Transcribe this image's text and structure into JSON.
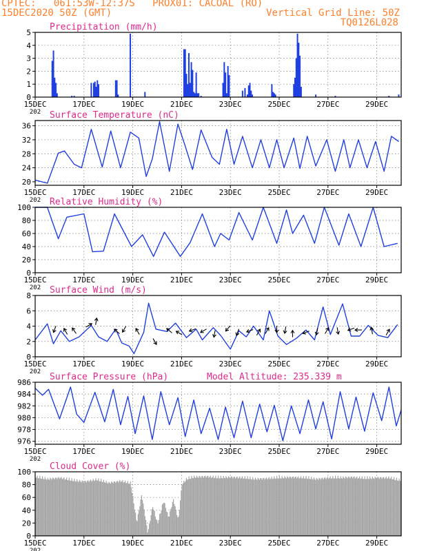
{
  "header": {
    "line1": "CPTEC:   061:53W-12:37S   PROX01: CACOAL (RO)",
    "line2": "15DEC2020 50Z (GMT)",
    "grid_note": "Vertical Grid Line: 50Z",
    "run_id": "TQ0126L028"
  },
  "colors": {
    "header": "#ff7f2a",
    "panel_title": "#e0288c",
    "line": "#1f3fe0",
    "bar": "#1f3fe0",
    "cloud": "#a8a8a8",
    "arrow": "#000000"
  },
  "x_axis": {
    "start_day": 15,
    "end_day": 30,
    "tick_days": [
      15,
      17,
      19,
      21,
      23,
      25,
      27,
      29
    ],
    "tick_labels": [
      "15DEC",
      "17DEC",
      "19DEC",
      "21DEC",
      "23DEC",
      "25DEC",
      "27DEC",
      "29DEC"
    ],
    "year_label": "202"
  },
  "chart_data": [
    {
      "type": "bar",
      "title": "Precipitation (mm/h)",
      "ylim": [
        0,
        5
      ],
      "yticks": [
        0,
        1,
        2,
        3,
        4,
        5
      ],
      "grid": true,
      "x": [
        15.7,
        15.75,
        15.8,
        15.85,
        15.9,
        16.5,
        16.6,
        17.3,
        17.4,
        17.45,
        17.5,
        17.55,
        17.6,
        18.3,
        18.35,
        18.4,
        18.9,
        19.5,
        21.1,
        21.15,
        21.2,
        21.25,
        21.3,
        21.35,
        21.4,
        21.45,
        21.5,
        21.55,
        21.6,
        21.65,
        21.7,
        21.8,
        22.7,
        22.75,
        22.8,
        22.85,
        22.9,
        22.95,
        23.5,
        23.6,
        23.7,
        23.75,
        23.8,
        23.85,
        23.9,
        24.7,
        24.75,
        24.8,
        24.85,
        25.6,
        25.65,
        25.7,
        25.75,
        25.8,
        25.85,
        25.9,
        26.5,
        27.3,
        29.5,
        29.9
      ],
      "values": [
        2.8,
        3.6,
        1.5,
        1.1,
        0.3,
        0.1,
        0.1,
        1.1,
        1.1,
        1.2,
        0.8,
        1.3,
        1.0,
        1.3,
        1.3,
        0.2,
        4.9,
        0.4,
        3.7,
        3.7,
        1.8,
        1.0,
        3.4,
        1.1,
        2.7,
        2.1,
        0.4,
        0.3,
        1.9,
        0.3,
        0.3,
        0.1,
        1.1,
        2.7,
        1.9,
        0.3,
        2.4,
        1.7,
        0.5,
        0.7,
        0.2,
        0.9,
        1.1,
        0.5,
        0.2,
        1.0,
        0.4,
        0.3,
        0.2,
        1.0,
        1.5,
        3.0,
        4.9,
        4.2,
        3.2,
        0.8,
        0.2,
        0.1,
        0.1,
        0.2
      ]
    },
    {
      "type": "line",
      "title": "Surface Temperature (nC)",
      "ylim": [
        19,
        37.5
      ],
      "yticks": [
        20,
        24,
        28,
        32,
        36
      ],
      "grid": true,
      "x": [
        15.0,
        15.5,
        15.95,
        16.2,
        16.6,
        16.9,
        17.3,
        17.75,
        18.1,
        18.5,
        18.9,
        19.25,
        19.55,
        19.8,
        20.1,
        20.5,
        20.85,
        21.15,
        21.45,
        21.8,
        22.25,
        22.55,
        22.85,
        23.15,
        23.5,
        23.9,
        24.25,
        24.6,
        24.9,
        25.2,
        25.6,
        25.85,
        26.15,
        26.5,
        26.95,
        27.3,
        27.65,
        27.9,
        28.25,
        28.6,
        28.95,
        29.3,
        29.6,
        29.9
      ],
      "values": [
        20.5,
        19.6,
        28.2,
        28.8,
        25.0,
        24.0,
        35.0,
        24.2,
        34.5,
        24.0,
        34.2,
        32.5,
        21.5,
        26.5,
        37.2,
        23.0,
        36.5,
        30.2,
        23.5,
        34.8,
        27.0,
        25.0,
        35.0,
        25.0,
        33.0,
        24.0,
        32.0,
        24.0,
        32.0,
        24.0,
        32.5,
        23.8,
        33.0,
        24.5,
        32.0,
        23.0,
        32.0,
        24.0,
        32.0,
        24.0,
        31.5,
        23.0,
        33.0,
        31.5
      ]
    },
    {
      "type": "line",
      "title": "Relative Humidity (%)",
      "ylim": [
        0,
        100
      ],
      "yticks": [
        0,
        20,
        40,
        60,
        80,
        100
      ],
      "grid": true,
      "x": [
        15.0,
        15.5,
        15.95,
        16.3,
        17.0,
        17.35,
        17.8,
        18.25,
        18.95,
        19.4,
        19.85,
        20.3,
        20.95,
        21.35,
        21.85,
        22.35,
        22.6,
        22.95,
        23.35,
        23.9,
        24.35,
        24.9,
        25.3,
        25.55,
        26.0,
        26.45,
        26.85,
        27.45,
        27.85,
        28.35,
        28.85,
        29.3,
        29.85
      ],
      "values": [
        100,
        100,
        52,
        85,
        90,
        32,
        33,
        90,
        40,
        58,
        25,
        62,
        25,
        46,
        90,
        40,
        60,
        50,
        92,
        50,
        100,
        45,
        96,
        60,
        88,
        45,
        100,
        42,
        90,
        40,
        100,
        40,
        45
      ]
    },
    {
      "type": "line",
      "title": "Surface Wind (m/s)",
      "ylim": [
        0,
        8
      ],
      "yticks": [
        0,
        2,
        4,
        6,
        8
      ],
      "grid": true,
      "x": [
        15.0,
        15.5,
        15.75,
        16.05,
        16.4,
        16.8,
        17.3,
        17.6,
        17.95,
        18.3,
        18.55,
        18.85,
        19.05,
        19.45,
        19.65,
        19.95,
        20.4,
        20.75,
        21.2,
        21.6,
        21.85,
        22.3,
        22.6,
        23.0,
        23.35,
        23.65,
        23.95,
        24.35,
        24.6,
        24.95,
        25.3,
        25.7,
        26.1,
        26.45,
        26.8,
        27.1,
        27.6,
        27.95,
        28.3,
        28.65,
        29.05,
        29.45,
        29.85
      ],
      "values": [
        2.2,
        4.3,
        1.7,
        3.4,
        2.0,
        2.6,
        4.1,
        2.6,
        2.0,
        3.6,
        1.8,
        1.4,
        0.4,
        3.2,
        7.0,
        3.6,
        3.3,
        4.4,
        2.5,
        3.6,
        2.2,
        3.8,
        2.8,
        1.0,
        3.4,
        2.6,
        4.0,
        2.2,
        6.0,
        2.7,
        1.6,
        2.4,
        3.5,
        2.2,
        6.5,
        2.9,
        6.9,
        2.7,
        2.7,
        4.1,
        2.8,
        2.5,
        4.2
      ]
    },
    {
      "type": "line",
      "title": "Surface Pressure (hPa)",
      "annotation": "Model Altitude: 235.339 m",
      "ylim": [
        975.5,
        986
      ],
      "yticks": [
        976,
        978,
        980,
        982,
        984,
        986
      ],
      "grid": true,
      "x": [
        15.0,
        15.3,
        15.55,
        16.0,
        16.45,
        16.7,
        17.0,
        17.45,
        17.85,
        18.2,
        18.5,
        18.8,
        19.1,
        19.45,
        19.8,
        20.15,
        20.5,
        20.85,
        21.15,
        21.5,
        21.8,
        22.15,
        22.5,
        22.8,
        23.15,
        23.5,
        23.85,
        24.2,
        24.5,
        24.8,
        25.15,
        25.5,
        25.85,
        26.2,
        26.5,
        26.8,
        27.15,
        27.5,
        27.85,
        28.15,
        28.5,
        28.85,
        29.2,
        29.5,
        29.8,
        30.0
      ],
      "values": [
        985.0,
        983.8,
        984.8,
        979.8,
        985.2,
        980.6,
        979.2,
        984.3,
        979.3,
        984.8,
        978.8,
        983.6,
        977.3,
        983.7,
        976.3,
        984.4,
        978.8,
        983.4,
        976.8,
        983.0,
        977.3,
        981.6,
        976.3,
        981.8,
        976.6,
        982.8,
        976.6,
        982.3,
        977.6,
        982.1,
        976.1,
        982.0,
        977.3,
        983.0,
        978.1,
        982.7,
        976.4,
        984.4,
        978.1,
        983.5,
        977.7,
        984.2,
        979.5,
        985.2,
        978.6,
        981.3
      ]
    },
    {
      "type": "bar",
      "title": "Cloud Cover (%)",
      "ylim": [
        0,
        100
      ],
      "yticks": [
        0,
        20,
        40,
        60,
        80,
        100
      ],
      "grid": true,
      "x": [
        15.0,
        15.5,
        16.0,
        16.5,
        17.0,
        17.5,
        18.0,
        18.5,
        18.9,
        19.15,
        19.35,
        19.6,
        19.8,
        20.0,
        20.25,
        20.45,
        20.65,
        20.85,
        21.0,
        21.2,
        21.5,
        22.0,
        22.5,
        23.0,
        23.5,
        24.0,
        24.5,
        25.0,
        25.5,
        26.0,
        26.5,
        27.0,
        27.5,
        28.0,
        28.5,
        29.0,
        29.5,
        29.9
      ],
      "values": [
        95,
        92,
        94,
        90,
        88,
        91,
        86,
        89,
        85,
        24,
        68,
        8,
        50,
        22,
        58,
        32,
        60,
        28,
        84,
        92,
        95,
        96,
        94,
        95,
        94,
        92,
        93,
        94,
        95,
        94,
        92,
        94,
        94,
        95,
        93,
        94,
        94,
        90
      ]
    }
  ],
  "wind_arrows": {
    "x": [
      15.8,
      16.25,
      16.6,
      17.2,
      17.5,
      18.35,
      18.65,
      19.2,
      19.9,
      20.5,
      20.9,
      21.45,
      21.9,
      22.35,
      22.9,
      23.3,
      23.8,
      24.15,
      24.5,
      24.9,
      25.25,
      25.55,
      26.1,
      26.55,
      26.95,
      27.4,
      27.95,
      28.25,
      28.8,
      29.45
    ],
    "y": [
      3.6,
      3.3,
      3.4,
      4.1,
      4.6,
      3.3,
      3.6,
      3.3,
      2.0,
      3.4,
      3.1,
      3.5,
      3.4,
      3.0,
      3.7,
      3.2,
      3.4,
      3.2,
      3.4,
      3.6,
      3.5,
      3.0,
      3.2,
      3.3,
      3.4,
      3.4,
      3.6,
      3.5,
      3.4,
      3.2
    ],
    "direction_deg": [
      250,
      120,
      125,
      30,
      80,
      140,
      240,
      120,
      300,
      140,
      150,
      200,
      210,
      260,
      230,
      250,
      200,
      60,
      60,
      270,
      260,
      90,
      200,
      260,
      60,
      280,
      200,
      180,
      100,
      60
    ]
  }
}
